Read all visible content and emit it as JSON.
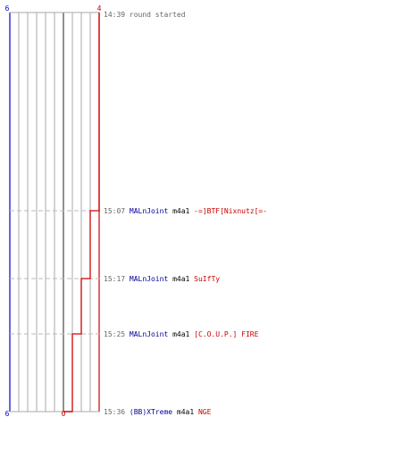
{
  "chart_data": {
    "type": "line",
    "axes": {
      "left_top_label": "6",
      "left_bottom_label": "6",
      "right_top_label": "4",
      "right_bottom_label": "0"
    },
    "events": [
      {
        "time": "14:39",
        "text": "round started"
      },
      {
        "time": "15:07",
        "killer": "MALnJoint",
        "weapon": "m4a1",
        "victim": "-=]BTF[Nixnutz[=-",
        "score_after": 3
      },
      {
        "time": "15:17",
        "killer": "MALnJoint",
        "weapon": "m4a1",
        "victim": "SuIfTy",
        "score_after": 2
      },
      {
        "time": "15:25",
        "killer": "MALnJoint",
        "weapon": "m4a1",
        "victim": "[C.O.U.P.] FIRE",
        "score_after": 1
      },
      {
        "time": "15:36",
        "killer": "(BB)XTreme",
        "weapon": "m4a1",
        "victim": "NGE",
        "score_after": 0
      }
    ],
    "series": [
      {
        "name": "",
        "color": "#0000cc",
        "values": [
          6,
          6,
          6,
          6,
          6
        ]
      },
      {
        "name": "",
        "color": "#cc0000",
        "values": [
          4,
          3,
          2,
          1,
          0
        ]
      }
    ],
    "grid": true,
    "colors": {
      "blue": "#0000cc",
      "red": "#cc0000",
      "killer": "#000099",
      "victim": "#cc0000",
      "gray_text": "#666666",
      "grid": "#aaaaaa",
      "dashed": "#bbbbbb",
      "center_line": "#555555"
    }
  }
}
